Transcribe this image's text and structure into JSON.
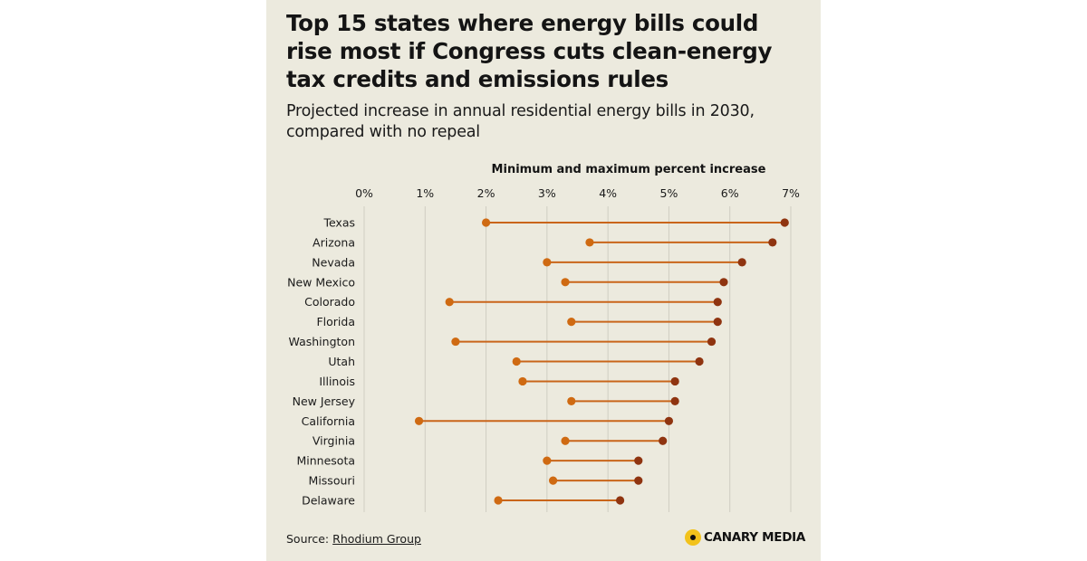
{
  "title": "Top 15 states where energy bills could rise most if Congress cuts clean-energy tax credits and emissions rules",
  "subtitle": "Projected increase in annual residential energy bills in 2030, compared with no repeal",
  "source": {
    "label": "Source:",
    "name": "Rhodium Group"
  },
  "brand": {
    "name": "CANARY MEDIA",
    "accent": "#f2c21b"
  },
  "colors": {
    "min_dot": "#cf6a12",
    "max_dot": "#8f3410",
    "range_line": "#c9651a",
    "grid": "#cfcdc2"
  },
  "chart_data": {
    "type": "dumbbell",
    "axis_title": "Minimum and maximum percent increase",
    "xlim": [
      0,
      7
    ],
    "ticks": [
      0,
      1,
      2,
      3,
      4,
      5,
      6,
      7
    ],
    "tick_labels": [
      "0%",
      "1%",
      "2%",
      "3%",
      "4%",
      "5%",
      "6%",
      "7%"
    ],
    "grid": true,
    "unit": "%",
    "rows": [
      {
        "state": "Texas",
        "min": 2.0,
        "max": 6.9
      },
      {
        "state": "Arizona",
        "min": 3.7,
        "max": 6.7
      },
      {
        "state": "Nevada",
        "min": 3.0,
        "max": 6.2
      },
      {
        "state": "New Mexico",
        "min": 3.3,
        "max": 5.9
      },
      {
        "state": "Colorado",
        "min": 1.4,
        "max": 5.8
      },
      {
        "state": "Florida",
        "min": 3.4,
        "max": 5.8
      },
      {
        "state": "Washington",
        "min": 1.5,
        "max": 5.7
      },
      {
        "state": "Utah",
        "min": 2.5,
        "max": 5.5
      },
      {
        "state": "Illinois",
        "min": 2.6,
        "max": 5.1
      },
      {
        "state": "New Jersey",
        "min": 3.4,
        "max": 5.1
      },
      {
        "state": "California",
        "min": 0.9,
        "max": 5.0
      },
      {
        "state": "Virginia",
        "min": 3.3,
        "max": 4.9
      },
      {
        "state": "Minnesota",
        "min": 3.0,
        "max": 4.5
      },
      {
        "state": "Missouri",
        "min": 3.1,
        "max": 4.5
      },
      {
        "state": "Delaware",
        "min": 2.2,
        "max": 4.2
      }
    ]
  }
}
